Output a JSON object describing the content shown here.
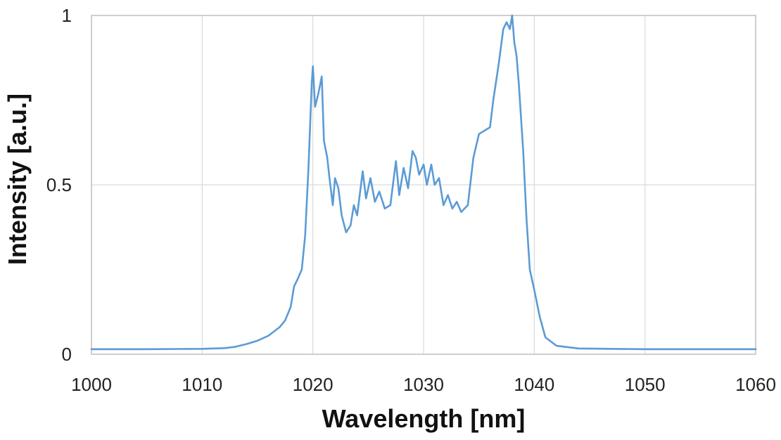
{
  "chart_data": {
    "type": "line",
    "title": "",
    "xlabel": "Wavelength [nm]",
    "ylabel": "Intensity [a.u.]",
    "xlim": [
      1000,
      1060
    ],
    "ylim": [
      0,
      1
    ],
    "x_ticks": [
      "1000",
      "1010",
      "1020",
      "1030",
      "1040",
      "1050",
      "1060"
    ],
    "y_ticks": [
      "0",
      "0.5",
      "1"
    ],
    "grid": true,
    "legend": "none",
    "line_color": "#5B9BD5",
    "series": [
      {
        "points": [
          [
            1000,
            0.015
          ],
          [
            1005,
            0.015
          ],
          [
            1010,
            0.016
          ],
          [
            1012,
            0.018
          ],
          [
            1013,
            0.022
          ],
          [
            1014,
            0.03
          ],
          [
            1015,
            0.04
          ],
          [
            1016,
            0.055
          ],
          [
            1017,
            0.08
          ],
          [
            1017.5,
            0.1
          ],
          [
            1018,
            0.14
          ],
          [
            1018.3,
            0.2
          ],
          [
            1018.6,
            0.22
          ],
          [
            1019,
            0.25
          ],
          [
            1019.3,
            0.35
          ],
          [
            1019.6,
            0.55
          ],
          [
            1019.9,
            0.8
          ],
          [
            1020,
            0.85
          ],
          [
            1020.2,
            0.73
          ],
          [
            1020.5,
            0.77
          ],
          [
            1020.8,
            0.82
          ],
          [
            1021,
            0.63
          ],
          [
            1021.3,
            0.58
          ],
          [
            1021.5,
            0.52
          ],
          [
            1021.8,
            0.44
          ],
          [
            1022,
            0.52
          ],
          [
            1022.3,
            0.49
          ],
          [
            1022.6,
            0.41
          ],
          [
            1023,
            0.36
          ],
          [
            1023.4,
            0.38
          ],
          [
            1023.7,
            0.44
          ],
          [
            1024,
            0.41
          ],
          [
            1024.5,
            0.54
          ],
          [
            1024.8,
            0.46
          ],
          [
            1025.2,
            0.52
          ],
          [
            1025.6,
            0.45
          ],
          [
            1026,
            0.48
          ],
          [
            1026.5,
            0.43
          ],
          [
            1027,
            0.44
          ],
          [
            1027.5,
            0.57
          ],
          [
            1027.8,
            0.47
          ],
          [
            1028.2,
            0.55
          ],
          [
            1028.6,
            0.49
          ],
          [
            1029,
            0.6
          ],
          [
            1029.3,
            0.58
          ],
          [
            1029.6,
            0.53
          ],
          [
            1030,
            0.56
          ],
          [
            1030.3,
            0.5
          ],
          [
            1030.7,
            0.56
          ],
          [
            1031,
            0.5
          ],
          [
            1031.4,
            0.52
          ],
          [
            1031.8,
            0.44
          ],
          [
            1032.2,
            0.47
          ],
          [
            1032.6,
            0.43
          ],
          [
            1033,
            0.45
          ],
          [
            1033.4,
            0.42
          ],
          [
            1034,
            0.44
          ],
          [
            1034.5,
            0.58
          ],
          [
            1035,
            0.65
          ],
          [
            1035.5,
            0.66
          ],
          [
            1036,
            0.67
          ],
          [
            1036.3,
            0.75
          ],
          [
            1036.8,
            0.86
          ],
          [
            1037.2,
            0.96
          ],
          [
            1037.5,
            0.98
          ],
          [
            1037.8,
            0.96
          ],
          [
            1038,
            1.0
          ],
          [
            1038.2,
            0.92
          ],
          [
            1038.4,
            0.88
          ],
          [
            1038.6,
            0.8
          ],
          [
            1039,
            0.6
          ],
          [
            1039.3,
            0.4
          ],
          [
            1039.6,
            0.25
          ],
          [
            1040,
            0.19
          ],
          [
            1040.5,
            0.11
          ],
          [
            1041,
            0.05
          ],
          [
            1042,
            0.025
          ],
          [
            1044,
            0.017
          ],
          [
            1050,
            0.015
          ],
          [
            1060,
            0.015
          ]
        ]
      }
    ]
  }
}
